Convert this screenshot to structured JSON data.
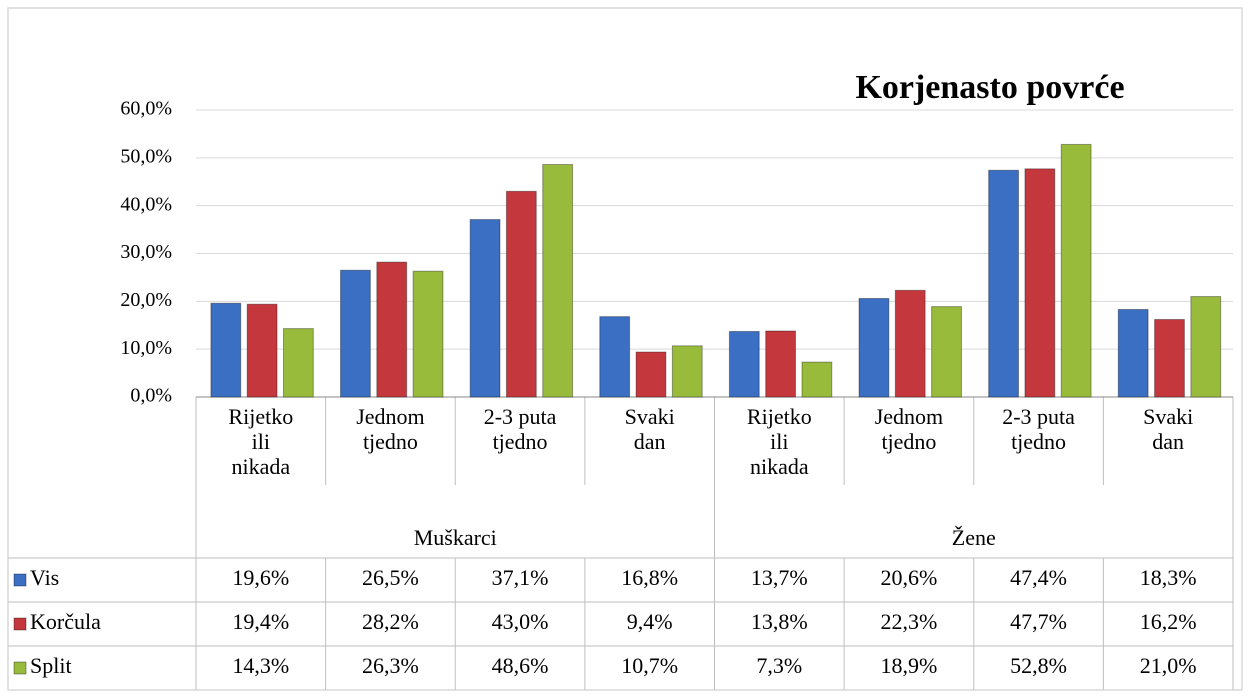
{
  "chart_data": {
    "type": "bar",
    "title": "Korjenasto povrće",
    "groups": [
      {
        "name": "Muškarci"
      },
      {
        "name": "Žene"
      }
    ],
    "categories": [
      "Rijetko ili nikada",
      "Jednom tjedno",
      "2-3 puta tjedno",
      "Svaki dan",
      "Rijetko ili nikada",
      "Jednom tjedno",
      "2-3 puta tjedno",
      "Svaki dan"
    ],
    "series": [
      {
        "name": "Vis",
        "color": "#3a6fc4",
        "values": [
          19.6,
          26.5,
          37.1,
          16.8,
          13.7,
          20.6,
          47.4,
          18.3
        ],
        "value_labels": [
          "19,6%",
          "26,5%",
          "37,1%",
          "16,8%",
          "13,7%",
          "20,6%",
          "47,4%",
          "18,3%"
        ]
      },
      {
        "name": "Korčula",
        "color": "#c4383d",
        "values": [
          19.4,
          28.2,
          43.0,
          9.4,
          13.8,
          22.3,
          47.7,
          16.2
        ],
        "value_labels": [
          "19,4%",
          "28,2%",
          "43,0%",
          "9,4%",
          "13,8%",
          "22,3%",
          "47,7%",
          "16,2%"
        ]
      },
      {
        "name": "Split",
        "color": "#99bb3b",
        "values": [
          14.3,
          26.3,
          48.6,
          10.7,
          7.3,
          18.9,
          52.8,
          21.0
        ],
        "value_labels": [
          "14,3%",
          "26,3%",
          "48,6%",
          "10,7%",
          "7,3%",
          "18,9%",
          "52,8%",
          "21,0%"
        ]
      }
    ],
    "ylim": [
      0,
      60
    ],
    "yticks": [
      {
        "value": 0,
        "label": "0,0%"
      },
      {
        "value": 10,
        "label": "10,0%"
      },
      {
        "value": 20,
        "label": "20,0%"
      },
      {
        "value": 30,
        "label": "30,0%"
      },
      {
        "value": 40,
        "label": "40,0%"
      },
      {
        "value": 50,
        "label": "50,0%"
      },
      {
        "value": 60,
        "label": "60,0%"
      }
    ],
    "grid": true
  }
}
